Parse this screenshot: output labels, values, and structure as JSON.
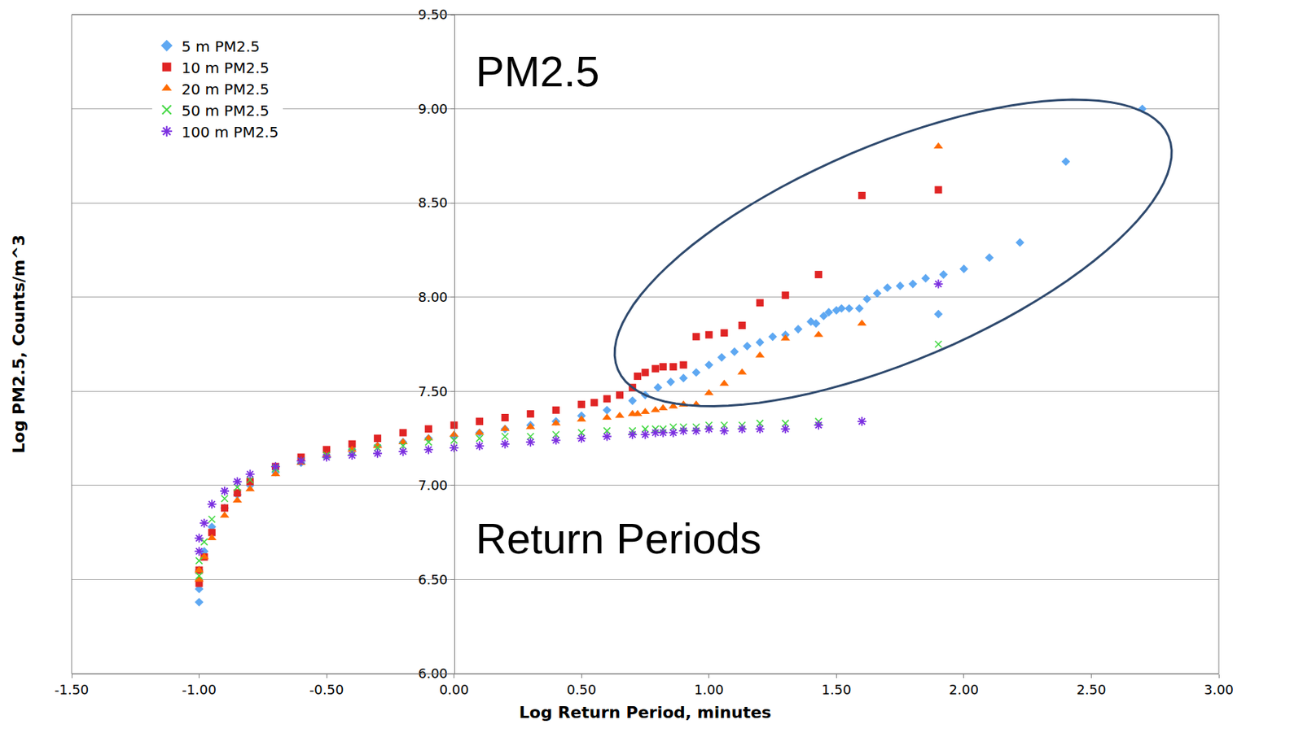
{
  "chart_data": {
    "type": "scatter",
    "x_label": "Log Return Period, minutes",
    "y_label": "Log PM2.5, Counts/m^3",
    "annotations": [
      "PM2.5",
      "Return Periods"
    ],
    "xlim": [
      -1.5,
      3.0
    ],
    "xticks": [
      {
        "value": -1.5,
        "label": "-1.50"
      },
      {
        "value": -1.0,
        "label": "-1.00"
      },
      {
        "value": -0.5,
        "label": "-0.50"
      },
      {
        "value": 0,
        "label": "0.00"
      },
      {
        "value": 0.5,
        "label": "0.50"
      },
      {
        "value": 1.0,
        "label": "1.00"
      },
      {
        "value": 1.5,
        "label": "1.50"
      },
      {
        "value": 2.0,
        "label": "2.00"
      },
      {
        "value": 2.5,
        "label": "2.50"
      },
      {
        "value": 3.0,
        "label": "3.00"
      }
    ],
    "ylim": [
      6.0,
      9.5
    ],
    "yticks": [
      {
        "value": 6.0,
        "label": "6.00"
      },
      {
        "value": 6.5,
        "label": "6.50"
      },
      {
        "value": 7.0,
        "label": "7.00"
      },
      {
        "value": 7.5,
        "label": "7.50"
      },
      {
        "value": 8.0,
        "label": "8.00"
      },
      {
        "value": 8.5,
        "label": "8.50"
      },
      {
        "value": 9.0,
        "label": "9.00"
      },
      {
        "value": 9.5,
        "label": "9.50"
      }
    ],
    "grid": "y",
    "legend": "top-left",
    "series": [
      {
        "name": "5 m PM2.5",
        "color": "#5ea8f2",
        "marker": "diamond",
        "x": [
          2.7,
          2.4,
          2.22,
          2.1,
          2.0,
          1.92,
          1.9,
          1.85,
          1.8,
          1.75,
          1.7,
          1.66,
          1.62,
          1.59,
          1.55,
          1.52,
          1.5,
          1.47,
          1.45,
          1.42,
          1.4,
          1.35,
          1.3,
          1.25,
          1.2,
          1.15,
          1.1,
          1.05,
          1.0,
          0.95,
          0.9,
          0.85,
          0.8,
          0.75,
          0.7,
          0.6,
          0.5,
          0.4,
          0.3,
          0.2,
          0.1,
          0.0,
          -0.1,
          -0.2,
          -0.3,
          -0.4,
          -0.5,
          -0.6,
          -0.7,
          -0.8,
          -0.85,
          -0.9,
          -0.95,
          -0.98,
          -1.0,
          -1.0,
          -1.0
        ],
        "values": [
          9.0,
          8.72,
          8.29,
          8.21,
          8.15,
          8.12,
          7.91,
          8.1,
          8.07,
          8.06,
          8.05,
          8.02,
          7.99,
          7.94,
          7.94,
          7.94,
          7.93,
          7.92,
          7.9,
          7.86,
          7.87,
          7.83,
          7.8,
          7.79,
          7.76,
          7.74,
          7.71,
          7.68,
          7.64,
          7.6,
          7.57,
          7.55,
          7.52,
          7.48,
          7.45,
          7.4,
          7.37,
          7.34,
          7.32,
          7.3,
          7.28,
          7.26,
          7.25,
          7.23,
          7.21,
          7.19,
          7.16,
          7.12,
          7.07,
          7.0,
          6.95,
          6.88,
          6.78,
          6.65,
          6.55,
          6.45,
          6.38
        ]
      },
      {
        "name": "10 m PM2.5",
        "color": "#e02424",
        "marker": "square",
        "x": [
          1.9,
          1.6,
          1.43,
          1.3,
          1.2,
          1.13,
          1.06,
          1.0,
          0.95,
          0.9,
          0.86,
          0.82,
          0.79,
          0.75,
          0.72,
          0.7,
          0.65,
          0.6,
          0.55,
          0.5,
          0.4,
          0.3,
          0.2,
          0.1,
          0.0,
          -0.1,
          -0.2,
          -0.3,
          -0.4,
          -0.5,
          -0.6,
          -0.7,
          -0.8,
          -0.85,
          -0.9,
          -0.95,
          -0.98,
          -1.0,
          -1.0
        ],
        "values": [
          8.57,
          8.54,
          8.12,
          8.01,
          7.97,
          7.85,
          7.81,
          7.8,
          7.79,
          7.64,
          7.63,
          7.63,
          7.62,
          7.6,
          7.58,
          7.52,
          7.48,
          7.46,
          7.44,
          7.43,
          7.4,
          7.38,
          7.36,
          7.34,
          7.32,
          7.3,
          7.28,
          7.25,
          7.22,
          7.19,
          7.15,
          7.1,
          7.02,
          6.96,
          6.88,
          6.75,
          6.62,
          6.55,
          6.48
        ]
      },
      {
        "name": "20 m PM2.5",
        "color": "#ff6a00",
        "marker": "triangle",
        "x": [
          1.9,
          1.6,
          1.43,
          1.3,
          1.2,
          1.13,
          1.06,
          1.0,
          0.95,
          0.9,
          0.86,
          0.82,
          0.79,
          0.75,
          0.72,
          0.7,
          0.65,
          0.6,
          0.5,
          0.4,
          0.3,
          0.2,
          0.1,
          0.0,
          -0.1,
          -0.2,
          -0.3,
          -0.4,
          -0.5,
          -0.6,
          -0.7,
          -0.8,
          -0.85,
          -0.9,
          -0.95,
          -0.98,
          -1.0,
          -1.0
        ],
        "values": [
          8.8,
          7.86,
          7.8,
          7.78,
          7.69,
          7.6,
          7.54,
          7.49,
          7.43,
          7.43,
          7.42,
          7.41,
          7.4,
          7.39,
          7.38,
          7.38,
          7.37,
          7.36,
          7.35,
          7.33,
          7.31,
          7.3,
          7.28,
          7.27,
          7.25,
          7.23,
          7.21,
          7.19,
          7.16,
          7.12,
          7.06,
          6.98,
          6.92,
          6.84,
          6.72,
          6.62,
          6.55,
          6.5
        ]
      },
      {
        "name": "50 m PM2.5",
        "color": "#44d844",
        "marker": "x",
        "x": [
          1.9,
          1.43,
          1.3,
          1.2,
          1.13,
          1.06,
          1.0,
          0.95,
          0.9,
          0.86,
          0.82,
          0.79,
          0.75,
          0.7,
          0.6,
          0.5,
          0.4,
          0.3,
          0.2,
          0.1,
          0.0,
          -0.1,
          -0.2,
          -0.3,
          -0.4,
          -0.5,
          -0.6,
          -0.7,
          -0.8,
          -0.85,
          -0.9,
          -0.95,
          -0.98,
          -1.0,
          -1.0
        ],
        "values": [
          7.75,
          7.34,
          7.33,
          7.33,
          7.32,
          7.32,
          7.32,
          7.31,
          7.31,
          7.31,
          7.3,
          7.3,
          7.3,
          7.29,
          7.29,
          7.28,
          7.27,
          7.26,
          7.26,
          7.25,
          7.24,
          7.23,
          7.21,
          7.2,
          7.18,
          7.16,
          7.13,
          7.09,
          7.03,
          6.99,
          6.93,
          6.82,
          6.7,
          6.6,
          6.52
        ]
      },
      {
        "name": "100 m PM2.5",
        "color": "#7b2fe0",
        "marker": "asterisk",
        "x": [
          1.9,
          1.6,
          1.43,
          1.3,
          1.2,
          1.13,
          1.06,
          1.0,
          0.95,
          0.9,
          0.86,
          0.82,
          0.79,
          0.75,
          0.7,
          0.6,
          0.5,
          0.4,
          0.3,
          0.2,
          0.1,
          0.0,
          -0.1,
          -0.2,
          -0.3,
          -0.4,
          -0.5,
          -0.6,
          -0.7,
          -0.8,
          -0.85,
          -0.9,
          -0.95,
          -0.98,
          -1.0,
          -1.0
        ],
        "values": [
          8.07,
          7.34,
          7.32,
          7.3,
          7.3,
          7.3,
          7.29,
          7.3,
          7.29,
          7.29,
          7.28,
          7.28,
          7.28,
          7.27,
          7.27,
          7.26,
          7.25,
          7.24,
          7.23,
          7.22,
          7.21,
          7.2,
          7.19,
          7.18,
          7.17,
          7.16,
          7.15,
          7.13,
          7.1,
          7.06,
          7.02,
          6.97,
          6.9,
          6.8,
          6.72,
          6.65
        ]
      }
    ]
  }
}
